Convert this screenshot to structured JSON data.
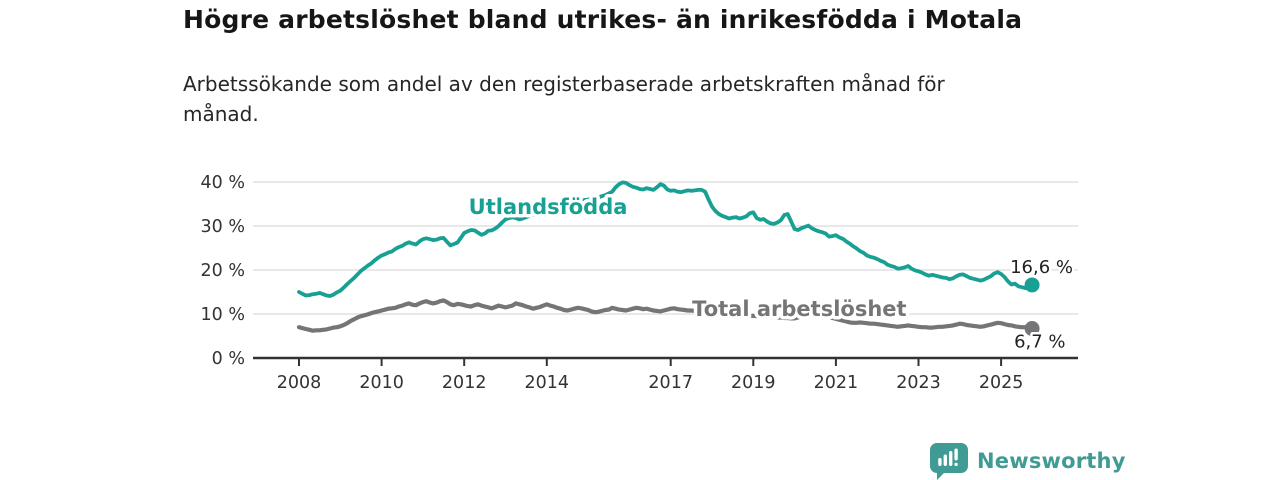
{
  "header": {
    "title": "Högre arbetslöshet bland utrikes- än inrikesfödda i Motala",
    "subtitle_line1": "Arbetssökande som andel av den registerbaserade arbetskraften månad för",
    "subtitle_line2": "månad."
  },
  "footer": {
    "brand": "Newsworthy",
    "brand_color": "#3f9b94"
  },
  "colors": {
    "foreign_born_line": "#17a093",
    "total_line": "#757578",
    "grid": "#d9d9d9",
    "axis": "#333333",
    "tick_label": "#333333",
    "value_label": "#222222"
  },
  "chart_data": {
    "type": "line",
    "title": "Högre arbetslöshet bland utrikes- än inrikesfödda i Motala",
    "xlabel": "",
    "ylabel": "",
    "ylim": [
      0,
      40
    ],
    "xlim": [
      2006.9,
      2026.9
    ],
    "grid": "horizontal",
    "legend_position": "inline-labels",
    "yticks": [
      {
        "v": 0,
        "label": "0 %"
      },
      {
        "v": 10,
        "label": "10 %"
      },
      {
        "v": 20,
        "label": "20 %"
      },
      {
        "v": 30,
        "label": "30 %"
      },
      {
        "v": 40,
        "label": "40 %"
      }
    ],
    "xticks": [
      {
        "v": 2008,
        "label": "2008"
      },
      {
        "v": 2010,
        "label": "2010"
      },
      {
        "v": 2012,
        "label": "2012"
      },
      {
        "v": 2014,
        "label": "2014"
      },
      {
        "v": 2017,
        "label": "2017"
      },
      {
        "v": 2019,
        "label": "2019"
      },
      {
        "v": 2021,
        "label": "2021"
      },
      {
        "v": 2023,
        "label": "2023"
      },
      {
        "v": 2025,
        "label": "2025"
      }
    ],
    "x_start": 2008.0,
    "x_step_months": 1,
    "series": [
      {
        "name": "Utlandsfödda",
        "color": "#17a093",
        "width": 3.8,
        "label": "Utlandsfödda",
        "label_at": {
          "year": 2014.03,
          "value": 34.3,
          "anchor": "middle"
        },
        "end_label": "16,6 %",
        "end_label_offset": {
          "dx": -22,
          "dy": -12
        },
        "values": [
          15.0,
          14.6,
          14.2,
          14.3,
          14.5,
          14.6,
          14.8,
          14.5,
          14.2,
          14.1,
          14.4,
          14.9,
          15.3,
          16.0,
          16.8,
          17.5,
          18.2,
          19.0,
          19.8,
          20.4,
          21.0,
          21.5,
          22.2,
          22.8,
          23.3,
          23.6,
          24.0,
          24.2,
          24.8,
          25.2,
          25.5,
          26.0,
          26.3,
          26.0,
          25.8,
          26.5,
          27.0,
          27.2,
          27.0,
          26.8,
          26.9,
          27.2,
          27.3,
          26.4,
          25.6,
          25.9,
          26.2,
          27.3,
          28.4,
          28.8,
          29.1,
          29.0,
          28.5,
          28.0,
          28.3,
          28.9,
          29.0,
          29.4,
          30.0,
          30.8,
          31.5,
          31.8,
          32.0,
          31.8,
          31.5,
          31.7,
          32.0,
          32.3,
          32.6,
          32.4,
          32.8,
          33.2,
          33.5,
          33.8,
          34.0,
          34.3,
          34.2,
          34.6,
          35.0,
          35.2,
          35.0,
          35.4,
          35.7,
          35.9,
          36.0,
          36.3,
          36.1,
          36.5,
          36.8,
          37.0,
          37.4,
          37.8,
          38.8,
          39.5,
          39.9,
          39.8,
          39.3,
          38.9,
          38.7,
          38.4,
          38.3,
          38.6,
          38.4,
          38.2,
          38.8,
          39.5,
          39.2,
          38.3,
          38.0,
          38.1,
          37.8,
          37.7,
          37.9,
          38.1,
          38.0,
          38.1,
          38.2,
          38.2,
          37.8,
          36.0,
          34.4,
          33.4,
          32.7,
          32.3,
          32.0,
          31.7,
          31.9,
          32.0,
          31.7,
          31.9,
          32.2,
          32.9,
          33.1,
          31.8,
          31.4,
          31.6,
          31.0,
          30.6,
          30.5,
          30.8,
          31.3,
          32.5,
          32.7,
          31.0,
          29.3,
          29.1,
          29.5,
          29.8,
          30.1,
          29.5,
          29.1,
          28.8,
          28.6,
          28.3,
          27.6,
          27.7,
          27.9,
          27.4,
          27.1,
          26.5,
          26.0,
          25.4,
          24.9,
          24.3,
          23.9,
          23.3,
          23.0,
          22.8,
          22.5,
          22.1,
          21.8,
          21.2,
          20.9,
          20.7,
          20.3,
          20.4,
          20.6,
          20.9,
          20.3,
          19.9,
          19.7,
          19.4,
          19.0,
          18.7,
          18.9,
          18.7,
          18.5,
          18.3,
          18.2,
          17.9,
          18.1,
          18.6,
          18.9,
          19.0,
          18.6,
          18.2,
          18.0,
          17.8,
          17.6,
          17.8,
          18.2,
          18.6,
          19.2,
          19.5,
          19.1,
          18.4,
          17.4,
          16.7,
          16.9,
          16.3,
          16.1,
          15.9,
          15.8,
          16.6
        ]
      },
      {
        "name": "Total arbetslöshet",
        "color": "#757578",
        "width": 4.2,
        "label": "Total arbetslöshet",
        "label_at": {
          "year": 2017.52,
          "value": 11.1,
          "anchor": "start"
        },
        "end_label": "6,7 %",
        "end_label_offset": {
          "dx": -18,
          "dy": 19
        },
        "values": [
          7.0,
          6.8,
          6.6,
          6.4,
          6.2,
          6.3,
          6.3,
          6.4,
          6.5,
          6.7,
          6.9,
          7.0,
          7.2,
          7.5,
          7.9,
          8.4,
          8.8,
          9.2,
          9.5,
          9.7,
          9.9,
          10.2,
          10.4,
          10.6,
          10.8,
          11.0,
          11.2,
          11.3,
          11.4,
          11.7,
          11.9,
          12.2,
          12.4,
          12.1,
          12.0,
          12.4,
          12.7,
          12.9,
          12.6,
          12.4,
          12.6,
          12.9,
          13.1,
          12.7,
          12.2,
          12.0,
          12.3,
          12.2,
          12.0,
          11.8,
          11.7,
          12.0,
          12.2,
          11.9,
          11.7,
          11.5,
          11.3,
          11.6,
          11.9,
          11.7,
          11.5,
          11.7,
          11.9,
          12.4,
          12.2,
          12.0,
          11.7,
          11.5,
          11.2,
          11.4,
          11.6,
          11.9,
          12.2,
          11.9,
          11.7,
          11.4,
          11.2,
          10.9,
          10.8,
          11.0,
          11.2,
          11.4,
          11.3,
          11.1,
          10.9,
          10.6,
          10.4,
          10.5,
          10.7,
          10.9,
          11.0,
          11.4,
          11.2,
          11.0,
          10.9,
          10.8,
          11.0,
          11.2,
          11.4,
          11.3,
          11.1,
          11.2,
          11.0,
          10.8,
          10.7,
          10.6,
          10.8,
          11.0,
          11.2,
          11.3,
          11.1,
          11.0,
          10.9,
          10.8,
          10.8,
          10.7,
          10.6,
          10.5,
          10.4,
          10.4,
          10.3,
          10.2,
          10.1,
          10.0,
          10.0,
          9.9,
          9.9,
          9.8,
          9.8,
          9.7,
          9.7,
          9.6,
          9.6,
          9.5,
          9.5,
          9.4,
          9.4,
          9.3,
          9.3,
          9.2,
          9.2,
          9.1,
          9.1,
          9.0,
          9.0,
          9.2,
          9.5,
          9.8,
          10.0,
          9.9,
          9.8,
          9.7,
          9.6,
          9.5,
          9.3,
          9.1,
          8.9,
          8.7,
          8.5,
          8.3,
          8.1,
          8.0,
          8.0,
          8.1,
          8.0,
          7.9,
          7.8,
          7.8,
          7.7,
          7.6,
          7.5,
          7.4,
          7.3,
          7.2,
          7.1,
          7.2,
          7.3,
          7.4,
          7.3,
          7.2,
          7.1,
          7.0,
          7.0,
          6.9,
          6.9,
          7.0,
          7.1,
          7.1,
          7.2,
          7.3,
          7.4,
          7.6,
          7.8,
          7.7,
          7.5,
          7.4,
          7.3,
          7.2,
          7.1,
          7.2,
          7.4,
          7.6,
          7.8,
          8.0,
          7.9,
          7.7,
          7.5,
          7.4,
          7.2,
          7.1,
          7.0,
          7.0,
          6.9,
          6.7
        ]
      }
    ]
  }
}
